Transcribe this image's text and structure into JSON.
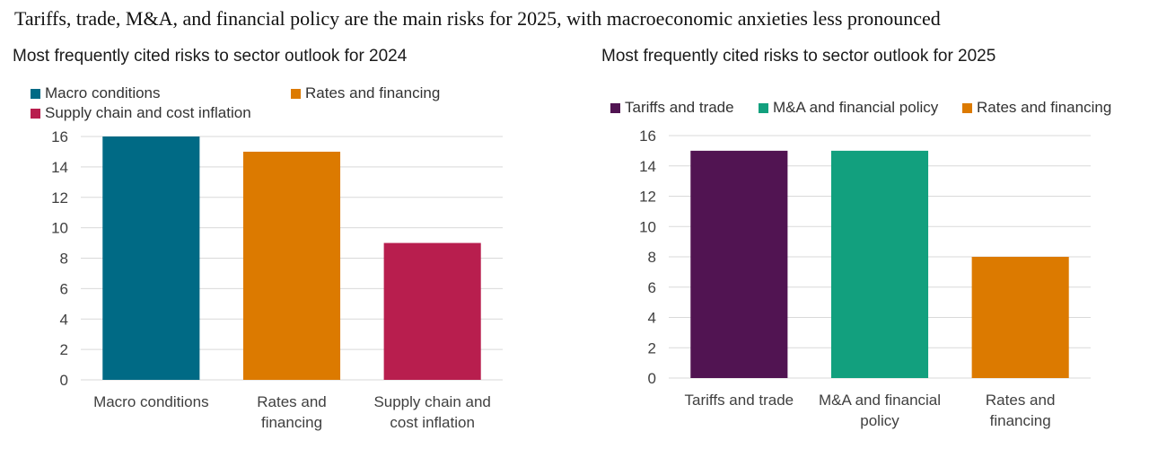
{
  "page_title": "Tariffs, trade, M&A, and financial policy are the main risks for 2025, with macroeconomic anxieties less pronounced",
  "chart_data": [
    {
      "type": "bar",
      "title": "Most frequently cited risks to sector outlook for 2024",
      "categories": [
        "Macro conditions",
        "Rates and financing",
        "Supply chain and cost inflation"
      ],
      "category_lines": [
        [
          "Macro conditions"
        ],
        [
          "Rates and",
          "financing"
        ],
        [
          "Supply chain and",
          "cost inflation"
        ]
      ],
      "values": [
        16,
        15,
        9
      ],
      "colors": [
        "#006a85",
        "#dc7a00",
        "#b81e4e"
      ],
      "legend": [
        {
          "label": "Macro conditions",
          "color": "#006a85"
        },
        {
          "label": "Rates and financing",
          "color": "#dc7a00"
        },
        {
          "label": "Supply chain and cost inflation",
          "color": "#b81e4e"
        }
      ],
      "ylim": [
        0,
        16
      ],
      "yticks": [
        0,
        2,
        4,
        6,
        8,
        10,
        12,
        14,
        16
      ],
      "grid": true,
      "xlabel": "",
      "ylabel": ""
    },
    {
      "type": "bar",
      "title": "Most frequently cited risks to sector outlook for 2025",
      "categories": [
        "Tariffs and trade",
        "M&A and financial policy",
        "Rates and financing"
      ],
      "category_lines": [
        [
          "Tariffs and trade"
        ],
        [
          "M&A and financial",
          "policy"
        ],
        [
          "Rates and",
          "financing"
        ]
      ],
      "values": [
        15,
        15,
        8
      ],
      "colors": [
        "#511452",
        "#12a07e",
        "#dc7a00"
      ],
      "legend": [
        {
          "label": "Tariffs and trade",
          "color": "#511452"
        },
        {
          "label": "M&A and financial policy",
          "color": "#12a07e"
        },
        {
          "label": "Rates and financing",
          "color": "#dc7a00"
        }
      ],
      "ylim": [
        0,
        16
      ],
      "yticks": [
        0,
        2,
        4,
        6,
        8,
        10,
        12,
        14,
        16
      ],
      "grid": true,
      "xlabel": "",
      "ylabel": ""
    }
  ]
}
